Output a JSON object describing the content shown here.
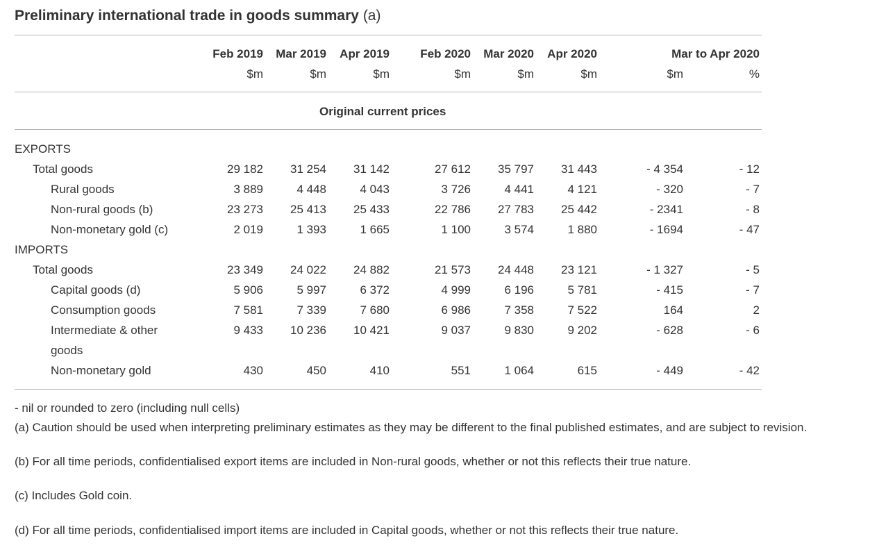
{
  "title": {
    "main": "Preliminary international trade in goods summary",
    "suffix": "(a)"
  },
  "columns": [
    "Feb 2019",
    "Mar 2019",
    "Apr 2019",
    "Feb 2020",
    "Mar 2020",
    "Apr 2020",
    "Mar to Apr 2020"
  ],
  "units": [
    "$m",
    "$m",
    "$m",
    "$m",
    "$m",
    "$m",
    "$m",
    "%"
  ],
  "subtitle": "Original current prices",
  "sections": [
    {
      "label": "EXPORTS",
      "rows": [
        {
          "label": "Total goods",
          "level": 1,
          "values": [
            "29 182",
            "31 254",
            "31 142",
            "27 612",
            "35 797",
            "31 443",
            "- 4 354",
            "- 12"
          ]
        },
        {
          "label": "Rural goods",
          "level": 2,
          "values": [
            "3 889",
            "4 448",
            "4 043",
            "3 726",
            "4 441",
            "4 121",
            "- 320",
            "- 7"
          ]
        },
        {
          "label": "Non-rural goods (b)",
          "level": 2,
          "values": [
            "23 273",
            "25 413",
            "25 433",
            "22 786",
            "27 783",
            "25 442",
            "- 2341",
            "- 8"
          ]
        },
        {
          "label": "Non-monetary gold (c)",
          "level": 2,
          "values": [
            "2 019",
            "1 393",
            "1 665",
            "1 100",
            "3 574",
            "1 880",
            "- 1694",
            "- 47"
          ]
        }
      ]
    },
    {
      "label": "IMPORTS",
      "rows": [
        {
          "label": "Total goods",
          "level": 1,
          "values": [
            "23 349",
            "24 022",
            "24 882",
            "21 573",
            "24 448",
            "23 121",
            "- 1 327",
            "- 5"
          ]
        },
        {
          "label": "Capital goods (d)",
          "level": 2,
          "values": [
            "5 906",
            "5 997",
            "6 372",
            "4 999",
            "6 196",
            "5 781",
            "- 415",
            "- 7"
          ]
        },
        {
          "label": "Consumption goods",
          "level": 2,
          "values": [
            "7 581",
            "7 339",
            "7 680",
            "6 986",
            "7 358",
            "7 522",
            "164",
            "2"
          ]
        },
        {
          "label": "Intermediate & other",
          "label2": "goods",
          "level": 2,
          "values": [
            "9 433",
            "10 236",
            "10 421",
            "9 037",
            "9 830",
            "9 202",
            "- 628",
            "- 6"
          ]
        },
        {
          "label": "Non-monetary gold",
          "level": 2,
          "values": [
            "430",
            "450",
            "410",
            "551",
            "1 064",
            "615",
            "- 449",
            "- 42"
          ]
        }
      ]
    }
  ],
  "notes": [
    "- nil or rounded to zero (including null cells)",
    "(a) Caution should be used when interpreting preliminary estimates as they may be different to the final published estimates, and are subject to revision.",
    "(b) For all time periods, confidentialised export items are included in Non-rural goods, whether or not this reflects their true nature.",
    "(c) Includes Gold coin.",
    "(d) For all time periods, confidentialised import items are included in Capital goods, whether or not this reflects their true nature."
  ]
}
